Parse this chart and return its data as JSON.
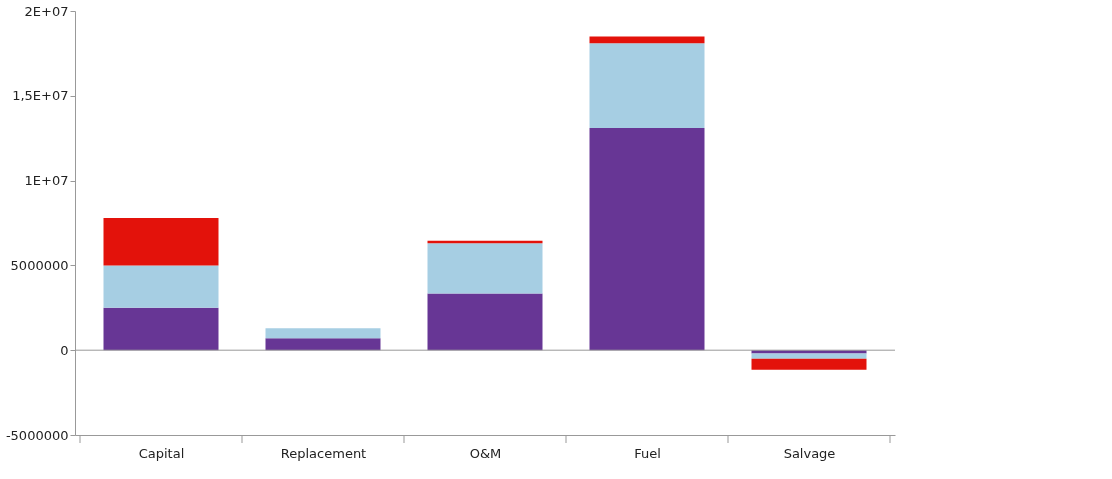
{
  "chart_data": {
    "type": "bar",
    "stacked": true,
    "categories": [
      "Capital",
      "Replacement",
      "O&M",
      "Fuel",
      "Salvage"
    ],
    "series": [
      {
        "color": "#673695",
        "values": [
          2500000,
          700000,
          3350000,
          13100000,
          -200000
        ]
      },
      {
        "color": "#a6cee3",
        "values": [
          2500000,
          600000,
          2950000,
          5000000,
          -300000
        ]
      },
      {
        "color": "#e3120b",
        "values": [
          2800000,
          null,
          150000,
          400000,
          -650000
        ]
      }
    ],
    "ylim": [
      -5000000,
      20000000
    ],
    "yticks": [
      {
        "value": -5000000,
        "label": "-5000000"
      },
      {
        "value": 0,
        "label": "0"
      },
      {
        "value": 5000000,
        "label": "5000000"
      },
      {
        "value": 10000000,
        "label": "1E+07"
      },
      {
        "value": 15000000,
        "label": "1,5E+07"
      },
      {
        "value": 20000000,
        "label": "2E+07"
      }
    ],
    "ref_lines": [
      {
        "axis": "y",
        "value": 0
      }
    ],
    "grid": false
  }
}
